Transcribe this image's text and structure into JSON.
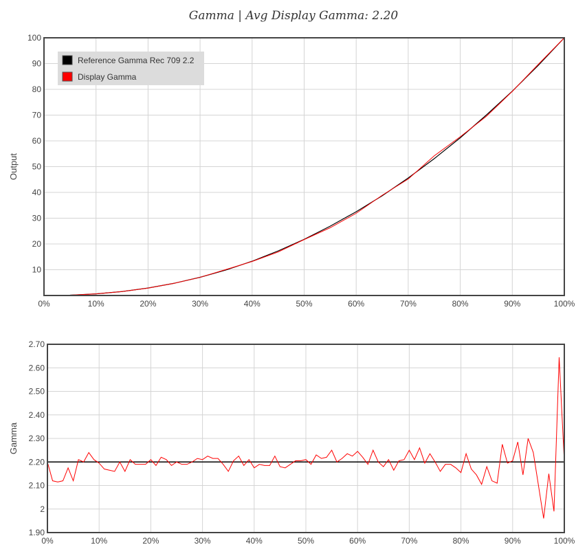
{
  "title": "Gamma | Avg Display Gamma: 2.20",
  "chart_data": [
    {
      "type": "line",
      "ylabel": "Output",
      "xlim": [
        0,
        100
      ],
      "ylim": [
        0,
        100
      ],
      "x_tick_labels": [
        "0%",
        "10%",
        "20%",
        "30%",
        "40%",
        "50%",
        "60%",
        "70%",
        "80%",
        "90%",
        "100%"
      ],
      "y_tick_labels": [
        "10",
        "20",
        "30",
        "40",
        "50",
        "60",
        "70",
        "80",
        "90",
        "100"
      ],
      "grid": true,
      "legend": {
        "position": "top-left"
      },
      "series": [
        {
          "name": "Reference Gamma Rec 709 2.2",
          "color": "#000000",
          "x": [
            0,
            5,
            10,
            15,
            20,
            25,
            30,
            35,
            40,
            45,
            50,
            55,
            60,
            65,
            70,
            75,
            80,
            85,
            90,
            95,
            100
          ],
          "values": [
            0,
            0.14,
            0.63,
            1.54,
            2.9,
            4.74,
            7.07,
            9.92,
            13.3,
            17.3,
            21.8,
            26.9,
            32.5,
            38.7,
            45.6,
            53.1,
            61.2,
            70.0,
            79.3,
            89.3,
            100
          ]
        },
        {
          "name": "Display Gamma",
          "color": "#ff0000",
          "x": [
            0,
            5,
            10,
            15,
            20,
            25,
            30,
            35,
            40,
            45,
            50,
            55,
            60,
            65,
            70,
            75,
            80,
            85,
            90,
            95,
            100
          ],
          "values": [
            0,
            0.14,
            0.62,
            1.52,
            2.88,
            4.72,
            7.05,
            10.1,
            13.2,
            16.9,
            21.7,
            26.3,
            31.9,
            38.9,
            45.2,
            54.2,
            61.6,
            69.5,
            79.2,
            89.7,
            100
          ]
        }
      ]
    },
    {
      "type": "line",
      "ylabel": "Gamma",
      "xlim": [
        0,
        100
      ],
      "ylim": [
        1.9,
        2.7
      ],
      "x_tick_labels": [
        "0%",
        "10%",
        "20%",
        "30%",
        "40%",
        "50%",
        "60%",
        "70%",
        "80%",
        "90%",
        "100%"
      ],
      "y_tick_labels": [
        "1.90",
        "2",
        "2.10",
        "2.20",
        "2.30",
        "2.40",
        "2.50",
        "2.60",
        "2.70"
      ],
      "grid": true,
      "reference_line": {
        "value": 2.2,
        "color": "#000000"
      },
      "series": [
        {
          "name": "Display Gamma",
          "color": "#ff0000",
          "x": [
            0,
            1,
            2,
            3,
            4,
            5,
            6,
            7,
            8,
            9,
            10,
            11,
            12,
            13,
            14,
            15,
            16,
            17,
            18,
            19,
            20,
            21,
            22,
            23,
            24,
            25,
            26,
            27,
            28,
            29,
            30,
            31,
            32,
            33,
            34,
            35,
            36,
            37,
            38,
            39,
            40,
            41,
            42,
            43,
            44,
            45,
            46,
            47,
            48,
            49,
            50,
            51,
            52,
            53,
            54,
            55,
            56,
            57,
            58,
            59,
            60,
            61,
            62,
            63,
            64,
            65,
            66,
            67,
            68,
            69,
            70,
            71,
            72,
            73,
            74,
            75,
            76,
            77,
            78,
            79,
            80,
            81,
            82,
            83,
            84,
            85,
            86,
            87,
            88,
            89,
            90,
            91,
            92,
            93,
            94,
            95,
            96,
            97,
            98,
            99,
            100
          ],
          "values": [
            2.2,
            2.12,
            2.115,
            2.12,
            2.175,
            2.12,
            2.21,
            2.2,
            2.24,
            2.21,
            2.195,
            2.17,
            2.165,
            2.16,
            2.2,
            2.16,
            2.21,
            2.19,
            2.19,
            2.19,
            2.21,
            2.185,
            2.22,
            2.21,
            2.185,
            2.2,
            2.19,
            2.19,
            2.2,
            2.215,
            2.21,
            2.225,
            2.215,
            2.215,
            2.19,
            2.16,
            2.205,
            2.225,
            2.185,
            2.21,
            2.175,
            2.19,
            2.185,
            2.185,
            2.225,
            2.18,
            2.175,
            2.19,
            2.205,
            2.205,
            2.21,
            2.19,
            2.23,
            2.215,
            2.22,
            2.25,
            2.2,
            2.215,
            2.235,
            2.225,
            2.245,
            2.22,
            2.19,
            2.25,
            2.2,
            2.18,
            2.21,
            2.165,
            2.205,
            2.21,
            2.25,
            2.21,
            2.26,
            2.195,
            2.235,
            2.2,
            2.16,
            2.19,
            2.19,
            2.175,
            2.155,
            2.235,
            2.17,
            2.145,
            2.105,
            2.18,
            2.12,
            2.11,
            2.275,
            2.195,
            2.205,
            2.285,
            2.145,
            2.3,
            2.24,
            2.1,
            1.96,
            2.15,
            1.99,
            2.645,
            2.2
          ]
        }
      ]
    }
  ]
}
